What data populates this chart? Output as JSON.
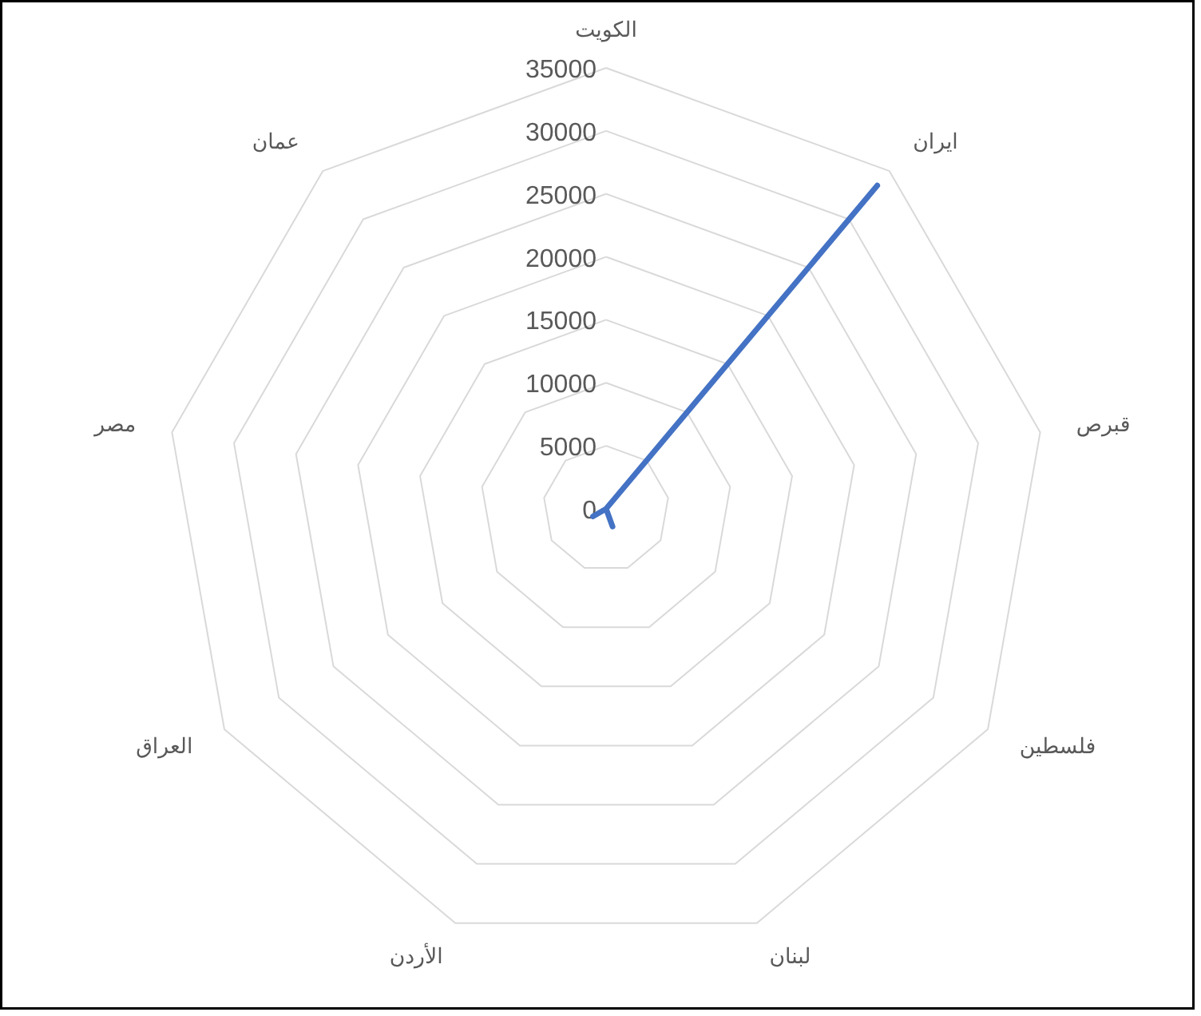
{
  "chart_data": {
    "type": "radar",
    "categories": [
      "الكويت",
      "ايران",
      "قبرص",
      "فلسطين",
      "لبنان",
      "الأردن",
      "العراق",
      "مصر",
      "عمان"
    ],
    "series": [
      {
        "color": "#4472c4",
        "values": [
          0,
          33500,
          0,
          0,
          1500,
          0,
          1200,
          0,
          0
        ]
      }
    ],
    "ylim": [
      0,
      35000
    ],
    "yticks": [
      0,
      5000,
      10000,
      15000,
      20000,
      25000,
      30000,
      35000
    ],
    "grid": true
  }
}
